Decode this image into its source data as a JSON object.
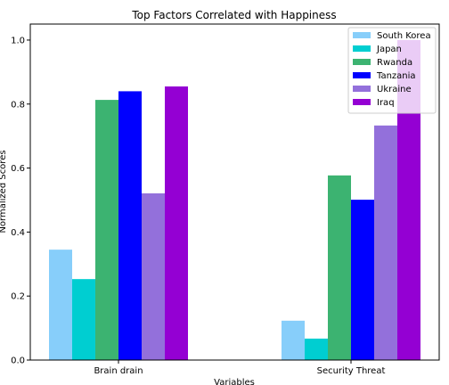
{
  "chart_data": {
    "type": "bar",
    "title": "Top Factors Correlated with Happiness",
    "xlabel": "Variables",
    "ylabel": "Normalized Scores",
    "categories": [
      "Brain drain",
      "Security Threat"
    ],
    "ylim": [
      0,
      1.05
    ],
    "yticks": [
      "0.0",
      "0.2",
      "0.4",
      "0.6",
      "0.8",
      "1.0"
    ],
    "legend_position": "top-right",
    "grid": false,
    "series": [
      {
        "name": "South Korea",
        "color": "#87CEFA",
        "values": [
          0.345,
          0.123
        ]
      },
      {
        "name": "Japan",
        "color": "#00CED1",
        "values": [
          0.253,
          0.067
        ]
      },
      {
        "name": "Rwanda",
        "color": "#3CB371",
        "values": [
          0.813,
          0.577
        ]
      },
      {
        "name": "Tanzania",
        "color": "#0000FF",
        "values": [
          0.84,
          0.501
        ]
      },
      {
        "name": "Ukraine",
        "color": "#9370DB",
        "values": [
          0.521,
          0.733
        ]
      },
      {
        "name": "Iraq",
        "color": "#9400D3",
        "values": [
          0.855,
          1.0
        ]
      }
    ]
  }
}
